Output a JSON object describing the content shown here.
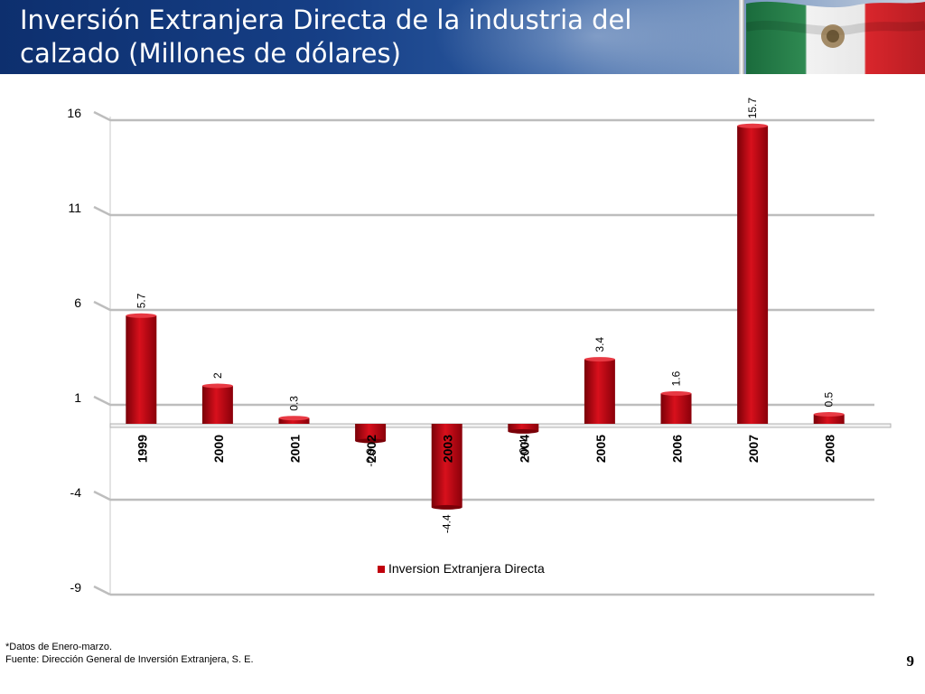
{
  "header": {
    "title": "Inversión Extranjera Directa de la industria del calzado (Millones de dólares)"
  },
  "chart_data": {
    "type": "bar",
    "categories": [
      "1999",
      "2000",
      "2001",
      "2002",
      "2003",
      "2004",
      "2005",
      "2006",
      "2007",
      "2008"
    ],
    "series": [
      {
        "name": "Inversion Extranjera Directa",
        "values": [
          5.7,
          2,
          0.3,
          -0.9,
          -4.4,
          -0.4,
          3.4,
          1.6,
          15.7,
          0.5
        ]
      }
    ],
    "data_labels": [
      "5.7",
      "2",
      "0.3",
      "-0.9",
      "-4.4",
      "-0.4",
      "3.4",
      "1.6",
      "15.7",
      "0.5"
    ],
    "yticks": [
      -9,
      -4,
      1,
      6,
      11,
      16
    ],
    "ylim": [
      -9,
      16
    ],
    "grid": true,
    "legend_position": "bottom",
    "bar_color": "#c0000c",
    "title": "",
    "xlabel": "",
    "ylabel": ""
  },
  "footer": {
    "note1": "*Datos de Enero-marzo.",
    "note2": "Fuente: Dirección General de Inversión Extranjera, S. E.",
    "page_number": "9"
  }
}
